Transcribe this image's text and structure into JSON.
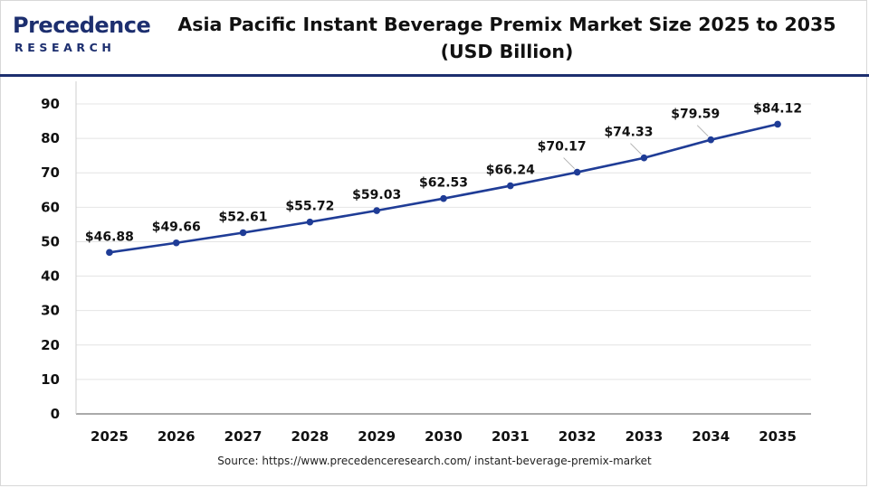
{
  "brand": {
    "logo_top": "Precedence",
    "logo_bottom": "RESEARCH",
    "color": "#1d2f6f"
  },
  "header": {
    "title_line1": "Asia Pacific Instant Beverage Premix Market Size 2025 to 2035",
    "title_line2": "(USD Billion)"
  },
  "footer": {
    "source": "Source: https://www.precedenceresearch.com/ instant-beverage-premix-market"
  },
  "chart_data": {
    "type": "line",
    "title": "Asia Pacific Instant Beverage Premix Market Size 2025 to 2035 (USD Billion)",
    "xlabel": "",
    "ylabel": "",
    "categories": [
      "2025",
      "2026",
      "2027",
      "2028",
      "2029",
      "2030",
      "2031",
      "2032",
      "2033",
      "2034",
      "2035"
    ],
    "series": [
      {
        "values": [
          46.88,
          49.66,
          52.61,
          55.72,
          59.03,
          62.53,
          66.24,
          70.17,
          74.33,
          79.59,
          84.12
        ],
        "labels": [
          "$46.88",
          "$49.66",
          "$52.61",
          "$55.72",
          "$59.03",
          "$62.53",
          "$66.24",
          "$70.17",
          "$74.33",
          "$79.59",
          "$84.12"
        ],
        "color": "#1f3c96"
      }
    ],
    "ylim": [
      0,
      90
    ],
    "yticks": [
      "0",
      "10",
      "20",
      "30",
      "40",
      "50",
      "60",
      "70",
      "80",
      "90"
    ],
    "grid": true,
    "legend": "none"
  }
}
